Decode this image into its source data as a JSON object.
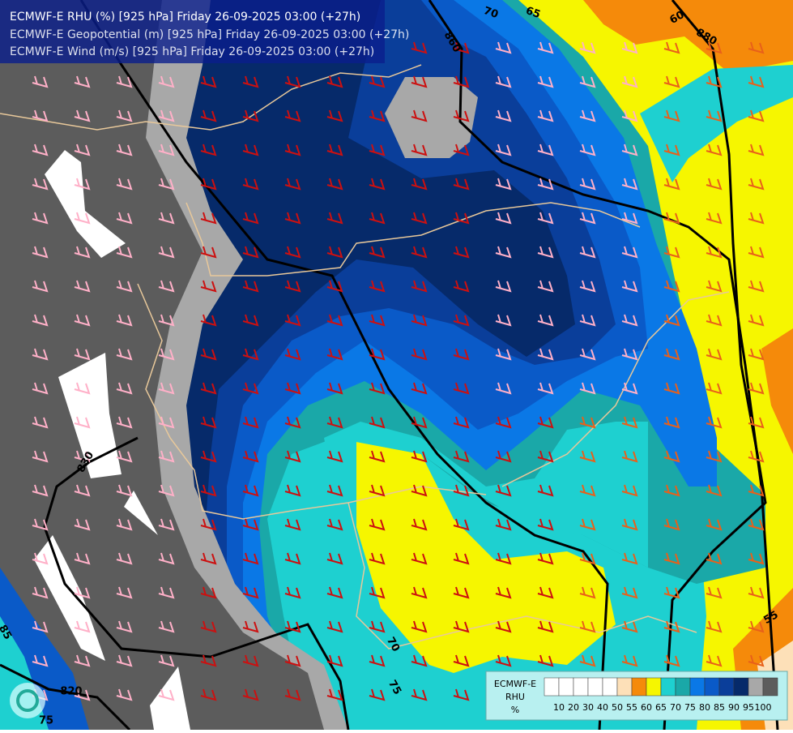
{
  "header": {
    "lines": [
      "ECMWF-E RHU (%) [925 hPa] Friday 26-09-2025 03:00 (+27h)",
      "ECMWF-E Geopotential (m) [925 hPa] Friday 26-09-2025 03:00 (+27h)",
      "ECMWF-E Wind (m/s) [925 hPa] Friday 26-09-2025 03:00 (+27h)"
    ]
  },
  "contour_labels": [
    "860",
    "880",
    "830",
    "820",
    "70",
    "65",
    "60",
    "55",
    "75",
    "70",
    "85",
    "75"
  ],
  "legend": {
    "title": [
      "ECMWF-E",
      "RHU",
      "%"
    ],
    "labels": [
      "10",
      "20",
      "30",
      "40",
      "50",
      "55",
      "60",
      "65",
      "70",
      "75",
      "80",
      "85",
      "90",
      "95",
      "100"
    ],
    "colors": [
      "#ffffff",
      "#ffffff",
      "#ffffff",
      "#ffffff",
      "#ffffff",
      "#fde0b8",
      "#f58a0a",
      "#f6f600",
      "#1ed0d0",
      "#1aa8a8",
      "#0a78e6",
      "#0a5ac8",
      "#0a3e9a",
      "#062a6a",
      "#a8a8a8",
      "#5c5c5c"
    ]
  }
}
